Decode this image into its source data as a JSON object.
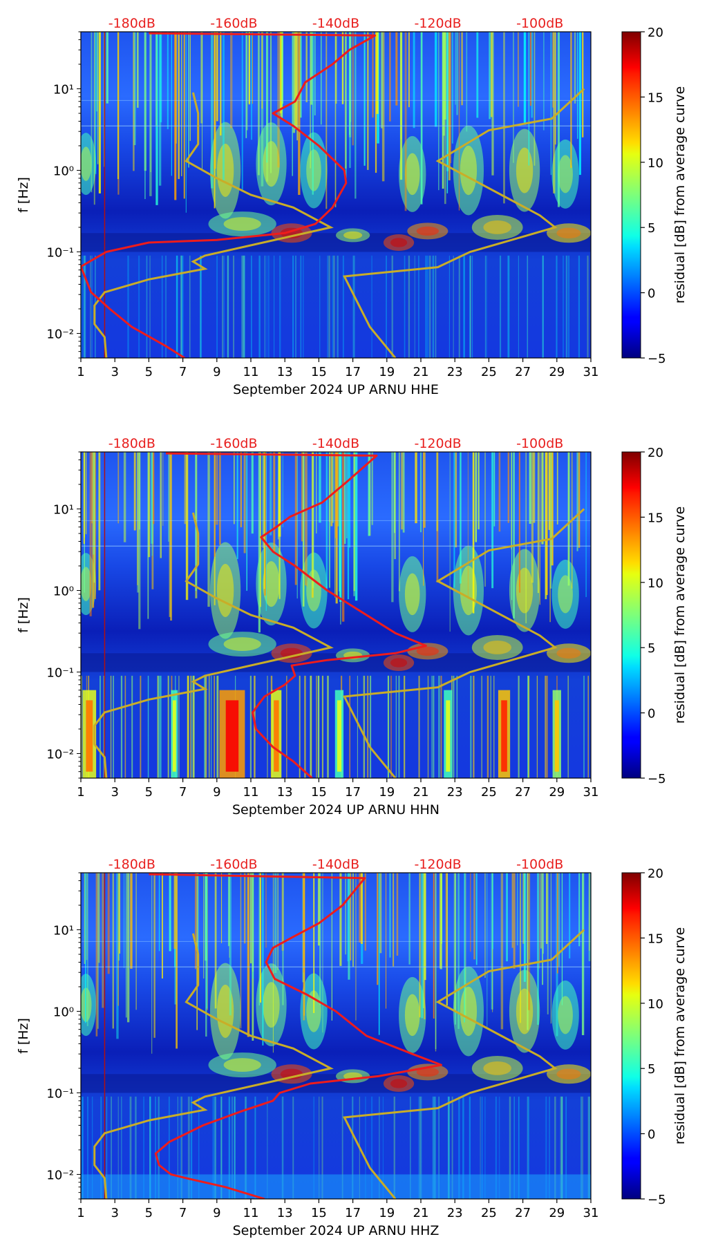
{
  "colors": {
    "noise_curve": "#ee1c1c",
    "model_curve": "#c9ad28",
    "top_db_label": "#e8201f",
    "background_mid": "#1f5cff"
  },
  "chart_data": [
    {
      "type": "heatmap",
      "channel": "HHE",
      "xlabel": "September 2024 UP ARNU  HHE",
      "ylabel": "f [Hz]",
      "x_ticks": [
        "1",
        "3",
        "5",
        "7",
        "9",
        "11",
        "13",
        "15",
        "17",
        "19",
        "21",
        "23",
        "25",
        "27",
        "29",
        "31"
      ],
      "xlim": [
        1,
        31
      ],
      "y_ticks": [
        "10⁻²",
        "10⁻¹",
        "10⁰",
        "10¹"
      ],
      "y_tick_values": [
        0.01,
        0.1,
        1,
        10
      ],
      "ylim_hz": [
        0.005,
        50
      ],
      "top_db_labels": [
        "-180dB",
        "-160dB",
        "-140dB",
        "-120dB",
        "-100dB"
      ],
      "top_db_positions_day": [
        4,
        10,
        16,
        22,
        28
      ],
      "colorbar": {
        "label": "residual [dB] from average curve",
        "ticks": [
          "20",
          "15",
          "10",
          "5",
          "0",
          "−5"
        ],
        "tick_values": [
          20,
          15,
          10,
          5,
          0,
          -5
        ],
        "range": [
          -5,
          20
        ]
      },
      "red_curve": {
        "name": "noise PSD",
        "points": [
          [
            7.1,
            0.005
          ],
          [
            6.0,
            0.007
          ],
          [
            4.0,
            0.012
          ],
          [
            2.7,
            0.02
          ],
          [
            1.6,
            0.032
          ],
          [
            1,
            0.066
          ],
          [
            2.5,
            0.1
          ],
          [
            5,
            0.13
          ],
          [
            9,
            0.14
          ],
          [
            13,
            0.17
          ],
          [
            14.8,
            0.22
          ],
          [
            15.8,
            0.35
          ],
          [
            16.6,
            0.7
          ],
          [
            16.5,
            1.0
          ],
          [
            15.0,
            2.0
          ],
          [
            13.5,
            3.5
          ],
          [
            12.3,
            5
          ],
          [
            13.6,
            7
          ],
          [
            14.2,
            12
          ],
          [
            15.8,
            20
          ],
          [
            16.8,
            30
          ],
          [
            18.3,
            45
          ],
          [
            5,
            48
          ]
        ]
      },
      "gold_curves": [
        {
          "name": "low model left",
          "points": [
            [
              2.5,
              0.005
            ],
            [
              2.4,
              0.009
            ],
            [
              1.8,
              0.013
            ],
            [
              1.8,
              0.022
            ],
            [
              2.4,
              0.032
            ],
            [
              5,
              0.046
            ],
            [
              8.3,
              0.062
            ],
            [
              7.6,
              0.076
            ],
            [
              8.3,
              0.09
            ],
            [
              15.7,
              0.2
            ],
            [
              13.5,
              0.35
            ],
            [
              11,
              0.5
            ],
            [
              9,
              0.8
            ],
            [
              7.2,
              1.3
            ],
            [
              7.9,
              2.1
            ],
            [
              7.9,
              5
            ],
            [
              7.6,
              9
            ]
          ]
        },
        {
          "name": "low model right",
          "points": [
            [
              19.5,
              0.005
            ],
            [
              18,
              0.012
            ],
            [
              16.5,
              0.05
            ],
            [
              22.0,
              0.065
            ],
            [
              23.9,
              0.1
            ],
            [
              28.9,
              0.2
            ],
            [
              28,
              0.28
            ],
            [
              22,
              1.3
            ],
            [
              25,
              3.1
            ],
            [
              28.7,
              4.3
            ],
            [
              30.6,
              10
            ]
          ]
        }
      ]
    },
    {
      "type": "heatmap",
      "channel": "HHN",
      "xlabel": "September 2024 UP ARNU  HHN",
      "ylabel": "f [Hz]",
      "x_ticks": [
        "1",
        "3",
        "5",
        "7",
        "9",
        "11",
        "13",
        "15",
        "17",
        "19",
        "21",
        "23",
        "25",
        "27",
        "29",
        "31"
      ],
      "xlim": [
        1,
        31
      ],
      "y_ticks": [
        "10⁻²",
        "10⁻¹",
        "10⁰",
        "10¹"
      ],
      "y_tick_values": [
        0.01,
        0.1,
        1,
        10
      ],
      "ylim_hz": [
        0.005,
        50
      ],
      "top_db_labels": [
        "-180dB",
        "-160dB",
        "-140dB",
        "-120dB",
        "-100dB"
      ],
      "top_db_positions_day": [
        4,
        10,
        16,
        22,
        28
      ],
      "colorbar": {
        "label": "residual [dB] from average curve",
        "ticks": [
          "20",
          "15",
          "10",
          "5",
          "0",
          "−5"
        ],
        "tick_values": [
          20,
          15,
          10,
          5,
          0,
          -5
        ],
        "range": [
          -5,
          20
        ]
      },
      "red_curve": {
        "name": "noise PSD",
        "points": [
          [
            14.6,
            0.005
          ],
          [
            13.5,
            0.008
          ],
          [
            12.3,
            0.012
          ],
          [
            11.3,
            0.02
          ],
          [
            11.1,
            0.032
          ],
          [
            11.8,
            0.05
          ],
          [
            13.0,
            0.07
          ],
          [
            13.6,
            0.09
          ],
          [
            13.4,
            0.12
          ],
          [
            15.5,
            0.14
          ],
          [
            19.5,
            0.17
          ],
          [
            21.3,
            0.21
          ],
          [
            19.5,
            0.3
          ],
          [
            17.2,
            0.6
          ],
          [
            15.5,
            1.0
          ],
          [
            13.6,
            2.0
          ],
          [
            12.3,
            3.0
          ],
          [
            11.6,
            4.5
          ],
          [
            12.5,
            6
          ],
          [
            13.3,
            8
          ],
          [
            15.2,
            12
          ],
          [
            16.7,
            22
          ],
          [
            18.4,
            45
          ],
          [
            6,
            48
          ]
        ]
      },
      "gold_curves": [
        {
          "name": "low model left",
          "points": [
            [
              2.5,
              0.005
            ],
            [
              2.4,
              0.009
            ],
            [
              1.8,
              0.013
            ],
            [
              1.8,
              0.022
            ],
            [
              2.4,
              0.032
            ],
            [
              5,
              0.046
            ],
            [
              8.3,
              0.062
            ],
            [
              7.6,
              0.076
            ],
            [
              8.3,
              0.09
            ],
            [
              15.7,
              0.2
            ],
            [
              13.5,
              0.35
            ],
            [
              11,
              0.5
            ],
            [
              9,
              0.8
            ],
            [
              7.2,
              1.3
            ],
            [
              7.9,
              2.1
            ],
            [
              7.9,
              5
            ],
            [
              7.6,
              9
            ]
          ]
        },
        {
          "name": "low model right",
          "points": [
            [
              19.5,
              0.005
            ],
            [
              18,
              0.012
            ],
            [
              16.5,
              0.05
            ],
            [
              22.0,
              0.065
            ],
            [
              23.9,
              0.1
            ],
            [
              28.9,
              0.2
            ],
            [
              28,
              0.28
            ],
            [
              22,
              1.3
            ],
            [
              25,
              3.1
            ],
            [
              28.7,
              4.3
            ],
            [
              30.6,
              10
            ]
          ]
        }
      ]
    },
    {
      "type": "heatmap",
      "channel": "HHZ",
      "xlabel": "September 2024 UP ARNU  HHZ",
      "ylabel": "f [Hz]",
      "x_ticks": [
        "1",
        "3",
        "5",
        "7",
        "9",
        "11",
        "13",
        "15",
        "17",
        "19",
        "21",
        "23",
        "25",
        "27",
        "29",
        "31"
      ],
      "xlim": [
        1,
        31
      ],
      "y_ticks": [
        "10⁻²",
        "10⁻¹",
        "10⁰",
        "10¹"
      ],
      "y_tick_values": [
        0.01,
        0.1,
        1,
        10
      ],
      "ylim_hz": [
        0.005,
        50
      ],
      "top_db_labels": [
        "-180dB",
        "-160dB",
        "-140dB",
        "-120dB",
        "-100dB"
      ],
      "top_db_positions_day": [
        4,
        10,
        16,
        22,
        28
      ],
      "colorbar": {
        "label": "residual [dB] from average curve",
        "ticks": [
          "20",
          "15",
          "10",
          "5",
          "0",
          "−5"
        ],
        "tick_values": [
          20,
          15,
          10,
          5,
          0,
          -5
        ],
        "range": [
          -5,
          20
        ]
      },
      "red_curve": {
        "name": "noise PSD",
        "points": [
          [
            11.8,
            0.005
          ],
          [
            9.5,
            0.007
          ],
          [
            7.2,
            0.009
          ],
          [
            6.3,
            0.01
          ],
          [
            5.6,
            0.013
          ],
          [
            5.4,
            0.018
          ],
          [
            6.2,
            0.025
          ],
          [
            8.2,
            0.04
          ],
          [
            10.5,
            0.06
          ],
          [
            12.3,
            0.08
          ],
          [
            12.7,
            0.1
          ],
          [
            14.5,
            0.13
          ],
          [
            18.5,
            0.16
          ],
          [
            22.2,
            0.22
          ],
          [
            20.5,
            0.3
          ],
          [
            17.8,
            0.5
          ],
          [
            16.0,
            1.0
          ],
          [
            14.3,
            1.6
          ],
          [
            12.4,
            2.5
          ],
          [
            11.9,
            4.0
          ],
          [
            12.3,
            6
          ],
          [
            13.4,
            8
          ],
          [
            15.0,
            12
          ],
          [
            16.4,
            20
          ],
          [
            17.7,
            43
          ],
          [
            5,
            48
          ]
        ]
      },
      "gold_curves": [
        {
          "name": "low model left",
          "points": [
            [
              2.5,
              0.005
            ],
            [
              2.4,
              0.009
            ],
            [
              1.8,
              0.013
            ],
            [
              1.8,
              0.022
            ],
            [
              2.4,
              0.032
            ],
            [
              5,
              0.046
            ],
            [
              8.3,
              0.062
            ],
            [
              7.6,
              0.076
            ],
            [
              8.3,
              0.09
            ],
            [
              15.7,
              0.2
            ],
            [
              13.5,
              0.35
            ],
            [
              11,
              0.5
            ],
            [
              9,
              0.8
            ],
            [
              7.2,
              1.3
            ],
            [
              7.9,
              2.1
            ],
            [
              7.9,
              5
            ],
            [
              7.6,
              9
            ]
          ]
        },
        {
          "name": "low model right",
          "points": [
            [
              19.5,
              0.005
            ],
            [
              18,
              0.012
            ],
            [
              16.5,
              0.05
            ],
            [
              22.0,
              0.065
            ],
            [
              23.9,
              0.1
            ],
            [
              28.9,
              0.2
            ],
            [
              28,
              0.28
            ],
            [
              22,
              1.3
            ],
            [
              25,
              3.1
            ],
            [
              28.7,
              4.3
            ],
            [
              30.6,
              10
            ]
          ]
        }
      ]
    }
  ]
}
